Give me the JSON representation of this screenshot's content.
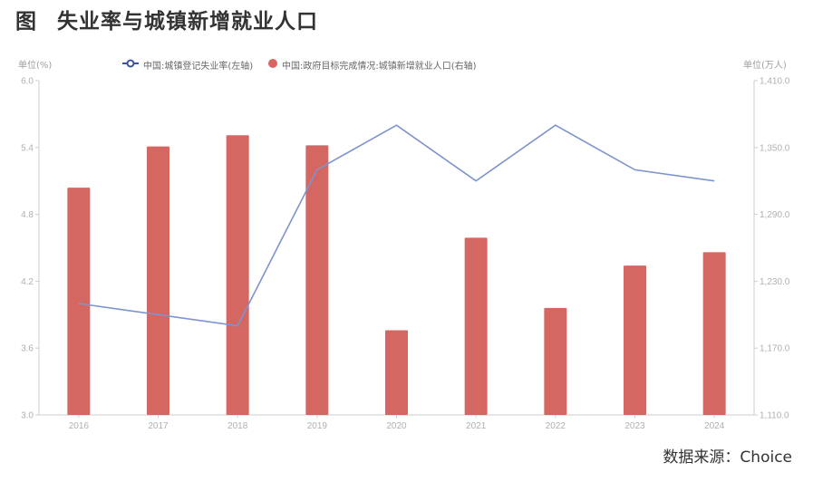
{
  "title": {
    "figure_label": "图",
    "text": "失业率与城镇新增就业人口"
  },
  "units": {
    "left": "单位(%)",
    "right": "单位(万人)"
  },
  "legend": [
    {
      "label": "中国:城镇登记失业率(左轴)",
      "symbol": "line-circle",
      "color": "#3a54a4"
    },
    {
      "label": "中国:政府目标完成情况:城镇新增就业人口(右轴)",
      "symbol": "circle",
      "color": "#d96660"
    }
  ],
  "source": "数据来源：Choice",
  "colors": {
    "bar": "#d56762",
    "line": "#7d94cc",
    "axis": "#cccccc",
    "tick_label": "#b0b0b0"
  },
  "chart_data": {
    "type": "bar+line",
    "title": "失业率与城镇新增就业人口",
    "categories": [
      "2016",
      "2017",
      "2018",
      "2019",
      "2020",
      "2021",
      "2022",
      "2023",
      "2024"
    ],
    "series": [
      {
        "name": "中国:城镇登记失业率(左轴)",
        "type": "line",
        "axis": "left",
        "values": [
          4.0,
          3.9,
          3.8,
          5.2,
          5.6,
          5.1,
          5.6,
          5.2,
          5.1
        ]
      },
      {
        "name": "中国:政府目标完成情况:城镇新增就业人口(右轴)",
        "type": "bar",
        "axis": "right",
        "values": [
          1314,
          1351,
          1361,
          1352,
          1186,
          1269,
          1206,
          1244,
          1256
        ]
      }
    ],
    "y_left": {
      "label": "单位(%)",
      "range": [
        3.0,
        6.0
      ],
      "ticks": [
        "6.0",
        "5.4",
        "4.8",
        "4.2",
        "3.6",
        "3.0"
      ]
    },
    "y_right": {
      "label": "单位(万人)",
      "range": [
        1110,
        1410
      ],
      "ticks": [
        "1,410.0",
        "1,350.0",
        "1,290.0",
        "1,230.0",
        "1,170.0",
        "1,110.0"
      ]
    },
    "grid": false,
    "legend_position": "top"
  }
}
